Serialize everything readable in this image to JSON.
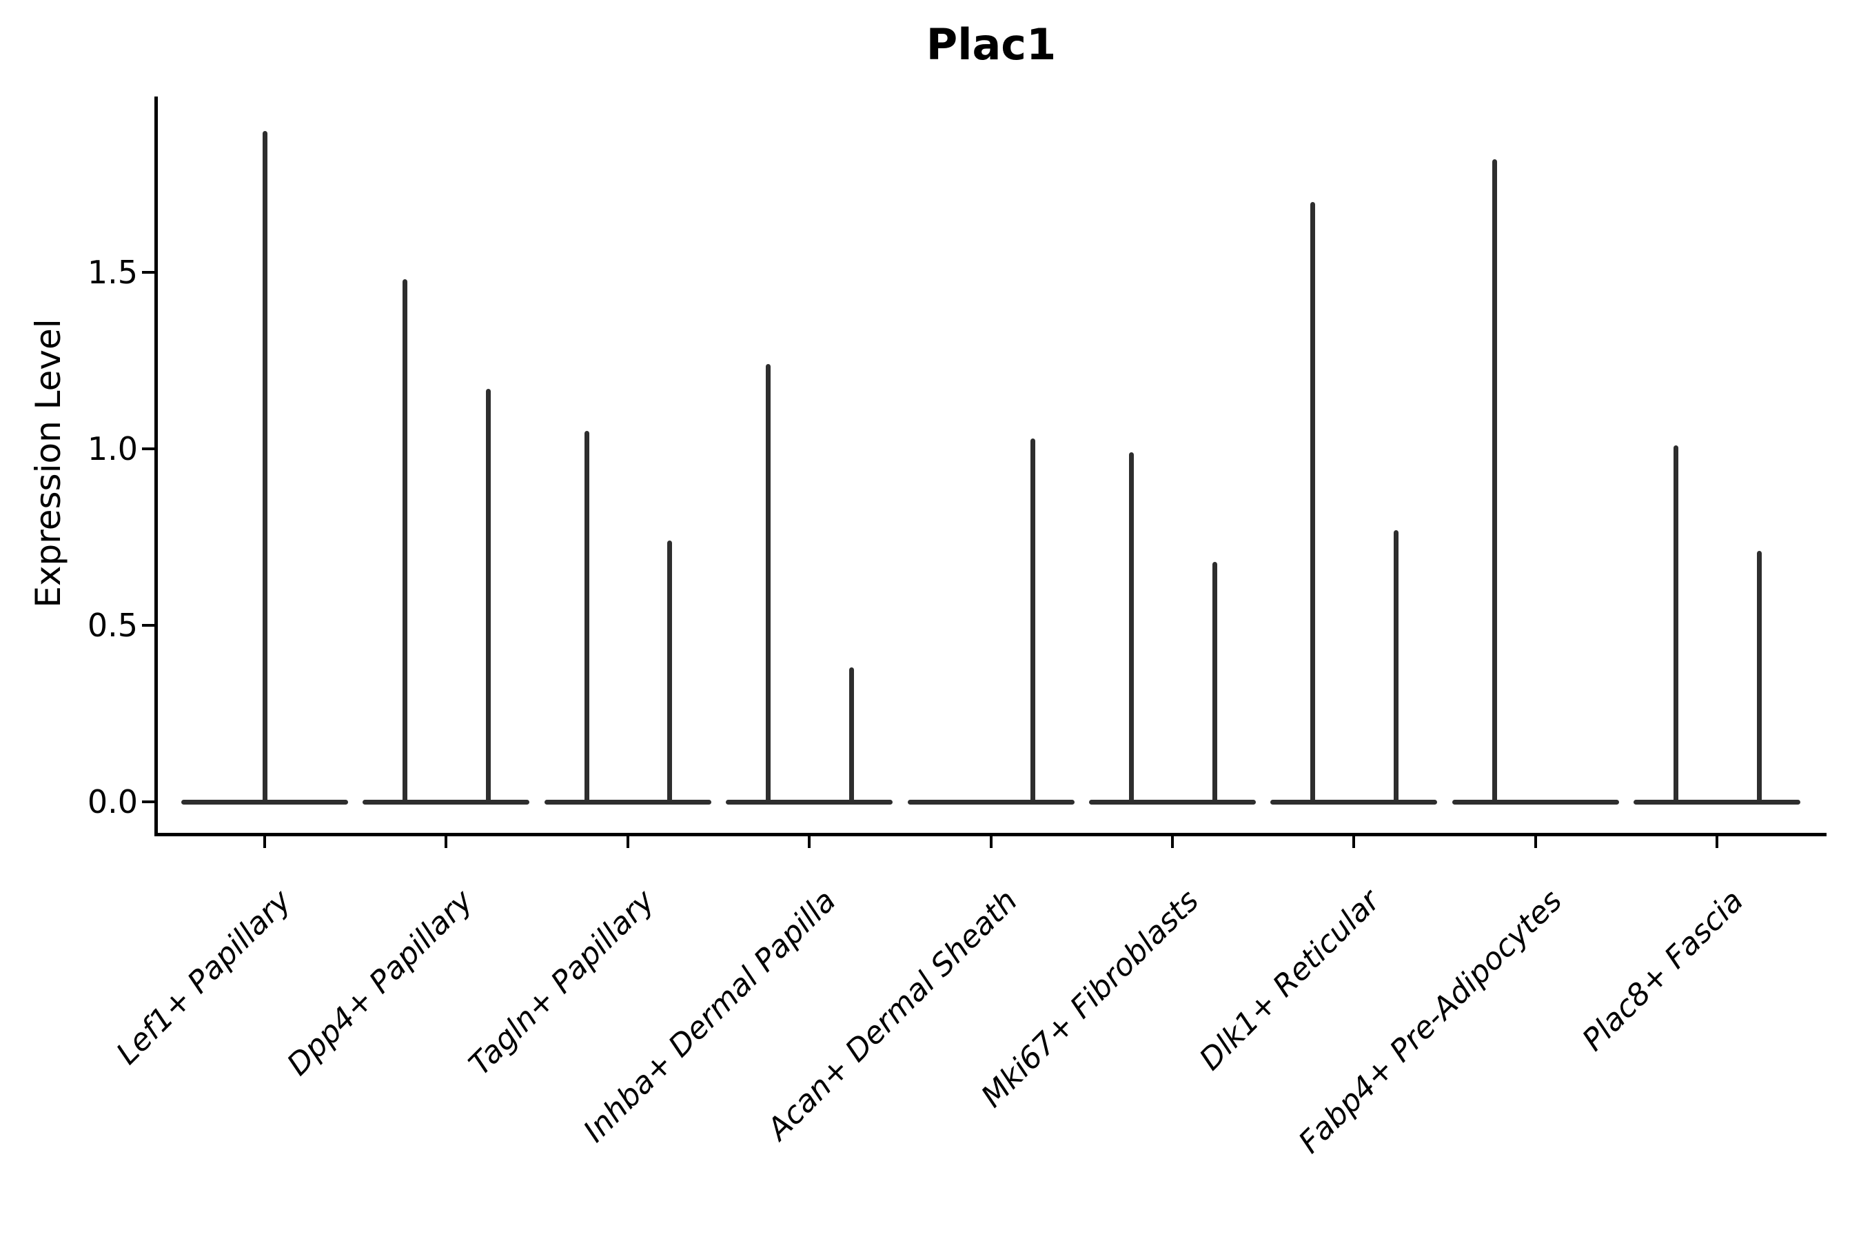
{
  "title": "Plac1",
  "axes": {
    "ylabel": "Expression Level",
    "xlabel": "",
    "ytick_labels": [
      "0.0",
      "0.5",
      "1.0",
      "1.5"
    ]
  },
  "chart_data": {
    "type": "violin",
    "title": "Plac1",
    "ylabel": "Expression Level",
    "xlabel": "",
    "ylim": [
      -0.09,
      2.0
    ],
    "yticks": [
      0.0,
      0.5,
      1.0,
      1.5
    ],
    "grid": false,
    "legend": null,
    "x_tick_rotation_deg": 45,
    "categories": [
      "Lef1+ Papillary",
      "Dpp4+ Papillary",
      "Tagln+ Papillary",
      "Inhba+ Dermal Papilla",
      "Acan+ Dermal Sheath",
      "Mki67+ Fibroblasts",
      "Dlk1+ Reticular",
      "Fabp4+ Pre-Adipocytes",
      "Plac8+ Fascia"
    ],
    "violins": [
      {
        "category": "Lef1+ Papillary",
        "baseline_value": 0,
        "spikes": [
          {
            "pos": "center",
            "max_expression": 1.9
          }
        ]
      },
      {
        "category": "Dpp4+ Papillary",
        "baseline_value": 0,
        "spikes": [
          {
            "pos": "left",
            "max_expression": 1.48
          },
          {
            "pos": "right",
            "max_expression": 1.17
          }
        ]
      },
      {
        "category": "Tagln+ Papillary",
        "baseline_value": 0,
        "spikes": [
          {
            "pos": "left",
            "max_expression": 1.05
          },
          {
            "pos": "right",
            "max_expression": 0.74
          }
        ]
      },
      {
        "category": "Inhba+ Dermal Papilla",
        "baseline_value": 0,
        "spikes": [
          {
            "pos": "left",
            "max_expression": 1.24
          },
          {
            "pos": "right",
            "max_expression": 0.38
          }
        ]
      },
      {
        "category": "Acan+ Dermal Sheath",
        "baseline_value": 0,
        "spikes": [
          {
            "pos": "right",
            "max_expression": 1.03
          }
        ]
      },
      {
        "category": "Mki67+ Fibroblasts",
        "baseline_value": 0,
        "spikes": [
          {
            "pos": "left",
            "max_expression": 0.99
          },
          {
            "pos": "right",
            "max_expression": 0.68
          }
        ]
      },
      {
        "category": "Dlk1+ Reticular",
        "baseline_value": 0,
        "spikes": [
          {
            "pos": "left",
            "max_expression": 1.7
          },
          {
            "pos": "right",
            "max_expression": 0.77
          }
        ]
      },
      {
        "category": "Fabp4+ Pre-Adipocytes",
        "baseline_value": 0,
        "spikes": [
          {
            "pos": "left",
            "max_expression": 1.82
          }
        ]
      },
      {
        "category": "Plac8+ Fascia",
        "baseline_value": 0,
        "spikes": [
          {
            "pos": "left",
            "max_expression": 1.01
          },
          {
            "pos": "right",
            "max_expression": 0.71
          }
        ]
      }
    ]
  },
  "colors": {
    "violin": "#2e2e2e",
    "axis": "#000000",
    "text": "#000000",
    "background": "#ffffff"
  }
}
